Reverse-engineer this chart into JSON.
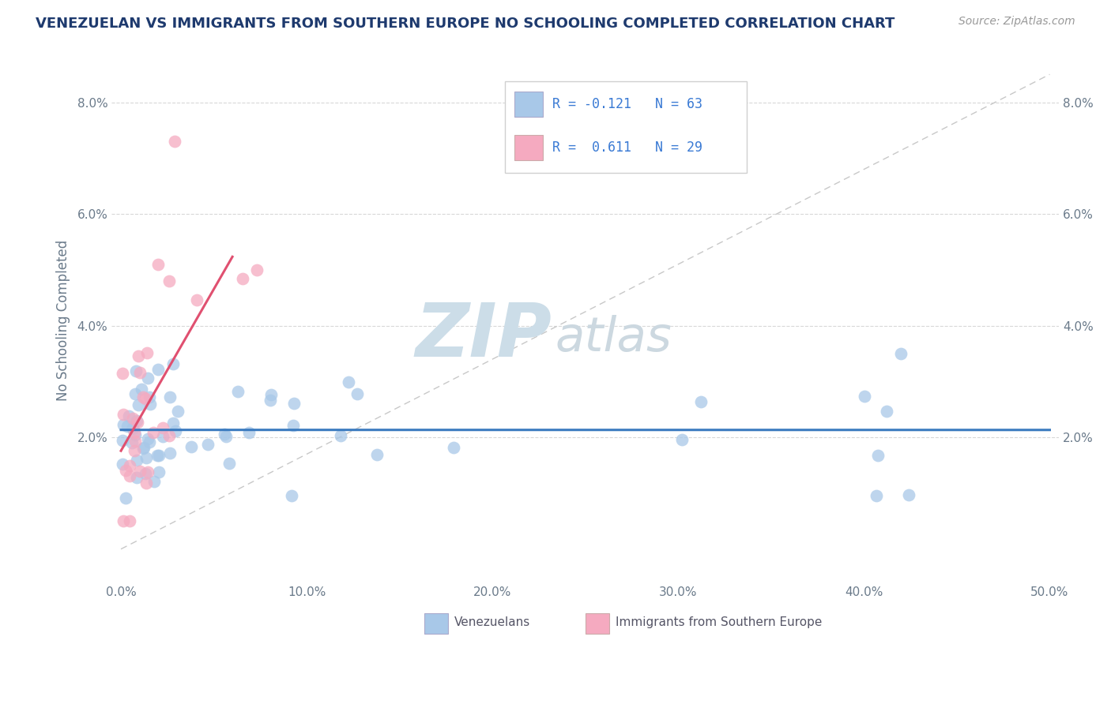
{
  "title": "VENEZUELAN VS IMMIGRANTS FROM SOUTHERN EUROPE NO SCHOOLING COMPLETED CORRELATION CHART",
  "source": "Source: ZipAtlas.com",
  "ylabel": "No Schooling Completed",
  "blue_scatter_color": "#a8c8e8",
  "pink_scatter_color": "#f5aac0",
  "blue_line_color": "#3a7abf",
  "pink_line_color": "#e05070",
  "diagonal_color": "#c8c8c8",
  "title_color": "#1e3a6e",
  "watermark_zip_color": "#ccdde8",
  "watermark_atlas_color": "#ccd8e0",
  "legend_border_color": "#d0d0d0",
  "legend_text_color": "#3a7ad4",
  "axis_label_color": "#6a7a8a",
  "grid_color": "#d8d8d8",
  "background": "#ffffff",
  "n_venezuelans": 63,
  "n_southern_europe": 29,
  "r_venezuelans": -0.121,
  "r_southern_europe": 0.611,
  "ven_intercept": 0.0225,
  "ven_slope": -0.006,
  "se_intercept": 0.014,
  "se_slope": 0.55
}
